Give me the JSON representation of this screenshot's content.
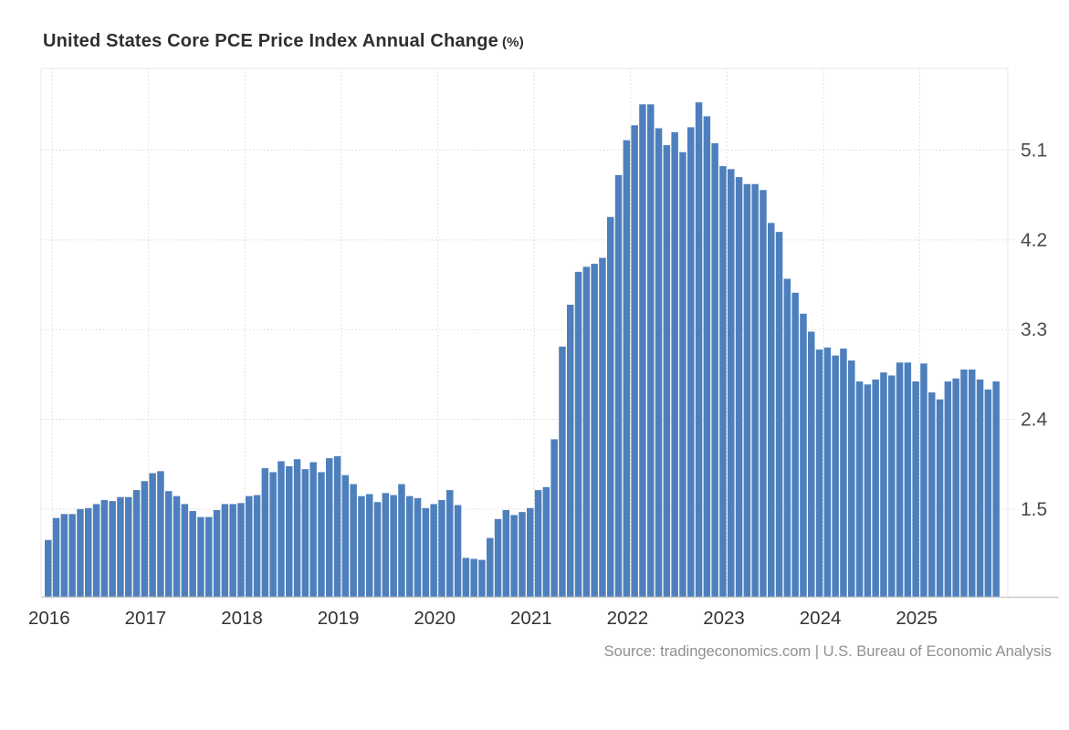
{
  "header": {
    "title": "United States Core PCE Price Index Annual Change",
    "unit_suffix": "(%)"
  },
  "footer": {
    "source_text": "Source: tradingeconomics.com | U.S. Bureau of Economic Analysis"
  },
  "chart_data": {
    "type": "bar",
    "title": "United States Core PCE Price Index Annual Change (%)",
    "bar_color": "#4e7fbd",
    "grid_color": "#d9d9d9",
    "plot_border_color": "#e9e9e9",
    "axis_line_color": "#cccccc",
    "y_tick_label_color": "#4a4a4a",
    "x_tick_label_color": "#333333",
    "grid": "dotted",
    "legend": "none",
    "y_axis": {
      "side": "right",
      "tick_values": [
        5.1,
        4.2,
        3.3,
        2.4,
        1.5
      ],
      "tick_labels": [
        "5.1",
        "4.2",
        "3.3",
        "2.4",
        "1.5"
      ],
      "min": 0.62,
      "max": 5.92
    },
    "x_axis": {
      "tick_labels": [
        "2016",
        "2017",
        "2018",
        "2019",
        "2020",
        "2021",
        "2022",
        "2023",
        "2024",
        "2025"
      ]
    },
    "frequency": "monthly",
    "start_month": "2015-12",
    "end_month": "2025-10",
    "values": [
      1.19,
      1.41,
      1.45,
      1.45,
      1.5,
      1.51,
      1.55,
      1.59,
      1.58,
      1.62,
      1.62,
      1.69,
      1.78,
      1.86,
      1.88,
      1.68,
      1.63,
      1.55,
      1.48,
      1.42,
      1.42,
      1.49,
      1.55,
      1.55,
      1.56,
      1.63,
      1.64,
      1.91,
      1.87,
      1.98,
      1.93,
      2.0,
      1.9,
      1.97,
      1.87,
      2.01,
      2.03,
      1.84,
      1.75,
      1.63,
      1.65,
      1.57,
      1.66,
      1.64,
      1.75,
      1.63,
      1.61,
      1.51,
      1.55,
      1.59,
      1.69,
      1.54,
      1.01,
      1.0,
      0.99,
      1.21,
      1.4,
      1.49,
      1.44,
      1.47,
      1.51,
      1.69,
      1.72,
      2.2,
      3.13,
      3.55,
      3.88,
      3.93,
      3.96,
      4.02,
      4.43,
      4.85,
      5.2,
      5.35,
      5.56,
      5.56,
      5.32,
      5.15,
      5.28,
      5.08,
      5.33,
      5.58,
      5.44,
      5.17,
      4.94,
      4.91,
      4.83,
      4.76,
      4.76,
      4.7,
      4.37,
      4.28,
      3.81,
      3.67,
      3.46,
      3.28,
      3.1,
      3.12,
      3.04,
      3.11,
      2.99,
      2.78,
      2.75,
      2.8,
      2.87,
      2.84,
      2.97,
      2.97,
      2.78,
      2.96,
      2.67,
      2.6,
      2.78,
      2.81,
      2.9,
      2.9,
      2.8,
      2.7,
      2.78
    ]
  }
}
